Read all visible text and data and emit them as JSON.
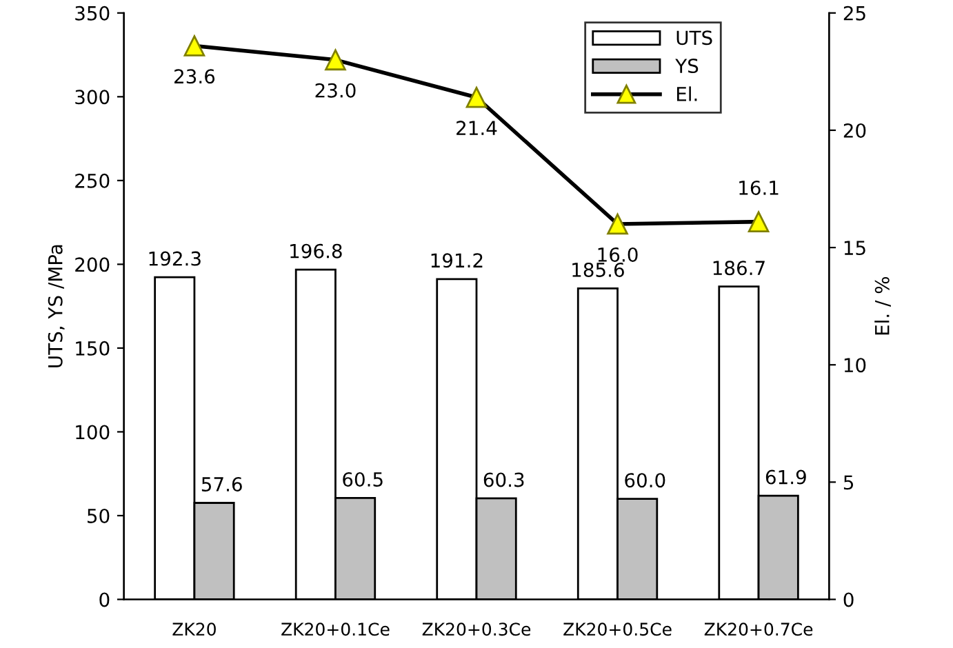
{
  "chart_data": {
    "type": "bar",
    "categories": [
      "ZK20",
      "ZK20+0.1Ce",
      "ZK20+0.3Ce",
      "ZK20+0.5Ce",
      "ZK20+0.7Ce"
    ],
    "ylabel": "UTS, YS /MPa",
    "y2label": "El. / %",
    "ylim": [
      0,
      350
    ],
    "yticks": [
      0,
      50,
      100,
      150,
      200,
      250,
      300,
      350
    ],
    "y2lim": [
      0,
      25
    ],
    "y2ticks": [
      0,
      5,
      10,
      15,
      20,
      25
    ],
    "series": [
      {
        "name": "UTS",
        "color": "#ffffff",
        "values": [
          192.3,
          196.8,
          191.2,
          185.6,
          186.7
        ],
        "value_labels": [
          "192.3",
          "196.8",
          "191.2",
          "185.6",
          "186.7"
        ]
      },
      {
        "name": "YS",
        "color": "#c0c0c0",
        "values": [
          57.6,
          60.5,
          60.3,
          60.0,
          61.9
        ],
        "value_labels": [
          "57.6",
          "60.5",
          "60.3",
          "60.0",
          "61.9"
        ]
      },
      {
        "name": "El.",
        "type": "line",
        "axis": "y2",
        "color": "#ffff00",
        "values": [
          23.6,
          23.0,
          21.4,
          16.0,
          16.1
        ],
        "value_labels": [
          "23.6",
          "23.0",
          "21.4",
          "16.0",
          "16.1"
        ]
      }
    ],
    "legend": "top right",
    "grid": false,
    "marker": "triangle",
    "line_style": "solid"
  }
}
